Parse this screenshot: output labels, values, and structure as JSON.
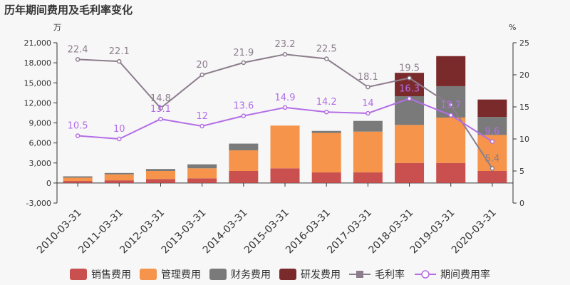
{
  "chart_data": {
    "type": "bar",
    "title": "历年期间费用及毛利率变化",
    "left_unit": "万",
    "right_unit": "%",
    "categories": [
      "2010-03-31",
      "2011-03-31",
      "2012-03-31",
      "2013-03-31",
      "2014-03-31",
      "2015-03-31",
      "2016-03-31",
      "2017-03-31",
      "2018-03-31",
      "2019-03-31",
      "2020-03-31"
    ],
    "y_left_lim": [
      -3000,
      21000
    ],
    "y_left_ticks": [
      -3000,
      0,
      3000,
      6000,
      9000,
      12000,
      15000,
      18000,
      21000
    ],
    "y_right_lim": [
      0,
      25
    ],
    "y_right_ticks": [
      0,
      5,
      10,
      15,
      20,
      25
    ],
    "stacked_series": [
      {
        "name": "销售费用",
        "color": "#c9504f",
        "values": [
          300,
          400,
          600,
          700,
          1800,
          2200,
          1600,
          1600,
          3000,
          3000,
          1800
        ]
      },
      {
        "name": "管理费用",
        "color": "#f5944a",
        "values": [
          500,
          900,
          1200,
          1500,
          3100,
          6400,
          5900,
          6100,
          5700,
          6800,
          5400
        ]
      },
      {
        "name": "财务费用",
        "color": "#7a7a7a",
        "values": [
          200,
          200,
          300,
          600,
          1000,
          0,
          300,
          1600,
          4300,
          4700,
          2700
        ]
      },
      {
        "name": "研发费用",
        "color": "#7b2a2b",
        "values": [
          0,
          0,
          0,
          0,
          0,
          0,
          0,
          0,
          3500,
          4500,
          2600
        ]
      }
    ],
    "line_series": [
      {
        "name": "毛利率",
        "color": "#8c7d8c",
        "values": [
          22.4,
          22.1,
          14.8,
          20,
          21.9,
          23.2,
          22.5,
          18.1,
          19.5,
          15.3,
          5.4
        ],
        "labels": [
          "22.4",
          "22.1",
          "14.8",
          "20",
          "21.9",
          "23.2",
          "22.5",
          "18.1",
          "19.5",
          "",
          "5.4"
        ]
      },
      {
        "name": "期间费用率",
        "color": "#b36ee6",
        "values": [
          10.5,
          10,
          13.1,
          12,
          13.6,
          14.9,
          14.2,
          14,
          16.3,
          13.7,
          9.6
        ],
        "labels": [
          "10.5",
          "10",
          "13.1",
          "12",
          "13.6",
          "14.9",
          "14.2",
          "14",
          "16.3",
          "13.7",
          "9.6"
        ]
      }
    ],
    "legend_position": "bottom",
    "grid": false
  }
}
